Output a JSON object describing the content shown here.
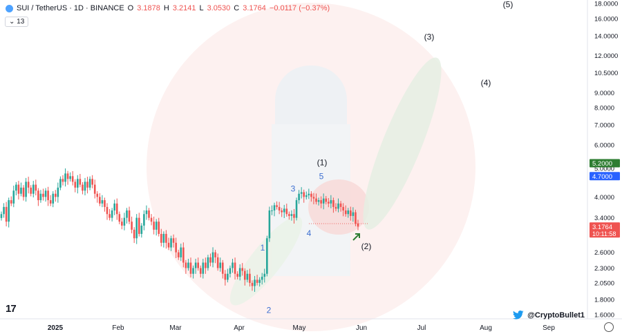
{
  "header": {
    "symbol": "SUI / TetherUS · 1D · BINANCE",
    "o_label": "O",
    "o": "3.1878",
    "h_label": "H",
    "h": "3.2141",
    "l_label": "L",
    "l": "3.0530",
    "c_label": "C",
    "c": "3.1764",
    "change": "−0.0117 (−0.37%)"
  },
  "indicator_chip": "13",
  "watermark": "@CryptoBullet1",
  "colors": {
    "up": "#26a69a",
    "down": "#ef5350",
    "wave_blue": "#3d6fd1",
    "label_green": "#2e7d32",
    "label_blue": "#2962ff"
  },
  "chart_data": {
    "type": "candlestick",
    "y_scale": "log",
    "ylim": [
      1.55,
      18.5
    ],
    "y_ticks": [
      "18.0000",
      "16.0000",
      "14.0000",
      "12.0000",
      "10.5000",
      "9.0000",
      "8.0000",
      "7.0000",
      "6.0000",
      "5.0000",
      "4.0000",
      "3.4000",
      "3.0000",
      "2.6000",
      "2.3000",
      "2.0500",
      "1.8000",
      "1.6000"
    ],
    "x_labels": [
      "2025",
      "Feb",
      "Mar",
      "Apr",
      "May",
      "Jun",
      "Jul",
      "Aug",
      "Sep"
    ],
    "price_labels": [
      {
        "value": 5.2,
        "text": "5.2000"
      },
      {
        "value": 4.7,
        "text": "4.7000"
      },
      {
        "value": 3.1764,
        "text": "3.1764",
        "sub": "10:11:58"
      }
    ],
    "minor_waves": [
      {
        "label": "1",
        "value": 2.5
      },
      {
        "label": "2",
        "value": 1.75
      },
      {
        "label": "3",
        "value": 3.95
      },
      {
        "label": "4",
        "value": 3.22
      },
      {
        "label": "5",
        "value": 4.35
      }
    ],
    "major_waves": [
      {
        "label": "(1)",
        "value": 4.9
      },
      {
        "label": "(2)",
        "value": 3.0
      },
      {
        "label": "(3)",
        "value": 13.0
      },
      {
        "label": "(4)",
        "value": 9.5
      },
      {
        "label": "(5)",
        "value": 17.5
      }
    ],
    "closes": [
      3.5,
      3.7,
      3.3,
      3.9,
      3.8,
      4.2,
      4.4,
      4.1,
      4.3,
      4.0,
      4.5,
      4.3,
      4.1,
      4.4,
      4.2,
      3.9,
      4.1,
      4.0,
      4.2,
      3.9,
      3.8,
      4.1,
      4.0,
      4.3,
      4.6,
      4.5,
      4.8,
      4.6,
      4.7,
      4.5,
      4.3,
      4.6,
      4.4,
      4.2,
      4.5,
      4.3,
      4.6,
      4.4,
      4.1,
      4.0,
      3.8,
      3.9,
      3.7,
      3.5,
      3.4,
      3.6,
      3.8,
      3.5,
      3.3,
      3.2,
      3.4,
      3.6,
      3.3,
      3.1,
      2.9,
      3.4,
      3.0,
      3.2,
      3.5,
      3.6,
      3.4,
      3.3,
      3.1,
      3.3,
      3.0,
      2.8,
      3.0,
      2.8,
      2.7,
      2.9,
      2.8,
      2.6,
      2.5,
      2.7,
      2.4,
      2.3,
      2.4,
      2.2,
      2.3,
      2.4,
      2.3,
      2.2,
      2.4,
      2.3,
      2.5,
      2.4,
      2.6,
      2.5,
      2.3,
      2.4,
      2.2,
      2.1,
      2.2,
      2.3,
      2.4,
      2.2,
      2.15,
      2.3,
      2.25,
      2.1,
      2.2,
      2.05,
      2.0,
      2.1,
      2.05,
      2.1,
      2.15,
      2.2,
      2.9,
      3.6,
      3.6,
      3.75,
      3.7,
      3.6,
      3.55,
      3.65,
      3.5,
      3.45,
      3.5,
      3.4,
      3.9,
      4.1,
      4.15,
      4.0,
      4.05,
      4.1,
      4.0,
      3.95,
      3.85,
      3.9,
      3.8,
      3.95,
      3.85,
      3.8,
      3.9,
      3.7,
      3.65,
      3.8,
      3.7,
      3.6,
      3.5,
      3.6,
      3.45,
      3.55,
      3.25,
      3.1764
    ]
  }
}
